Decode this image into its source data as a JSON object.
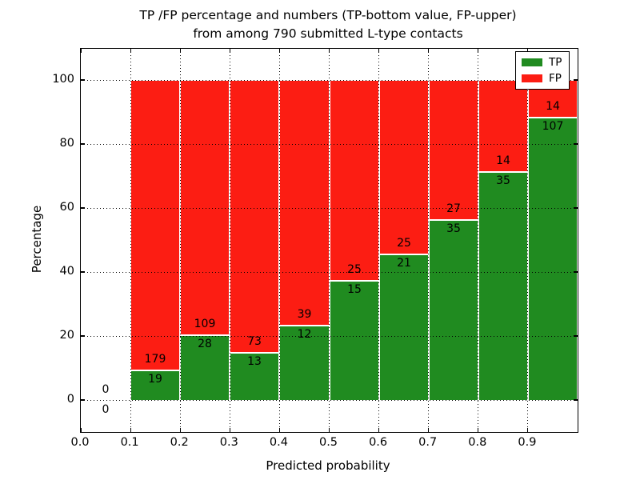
{
  "title": {
    "line1": "TP /FP percentage and numbers (TP-bottom value, FP-upper)",
    "line2": "from among 790 submitted L-type contacts"
  },
  "chart_data": {
    "type": "bar",
    "stacked": true,
    "normalized_to": "percent (each bin stacks to 100%)",
    "bins": [
      0.0,
      0.1,
      0.2,
      0.3,
      0.4,
      0.5,
      0.6,
      0.7,
      0.8,
      0.9
    ],
    "bin_width": 0.1,
    "series": [
      {
        "name": "TP",
        "color": "#208b20",
        "counts": [
          0,
          19,
          28,
          13,
          12,
          15,
          21,
          35,
          35,
          107
        ]
      },
      {
        "name": "FP",
        "color": "#fc1d13",
        "counts": [
          0,
          179,
          109,
          73,
          39,
          25,
          25,
          27,
          14,
          14
        ]
      }
    ],
    "total_contacts": 790,
    "xlabel": "Predicted probability",
    "ylabel": "Percentage",
    "x_tick_labels": [
      "0.0",
      "0.1",
      "0.2",
      "0.3",
      "0.4",
      "0.5",
      "0.6",
      "0.7",
      "0.8",
      "0.9"
    ],
    "y_tick_labels": [
      "0",
      "20",
      "40",
      "60",
      "80",
      "100"
    ],
    "y_ticks": [
      0,
      20,
      40,
      60,
      80,
      100
    ],
    "xlim": [
      0.0,
      1.0
    ],
    "ylim": [
      -10,
      110
    ],
    "grid": "dotted black, both axes",
    "legend_position": "upper right"
  },
  "legend": {
    "items": [
      {
        "label": "TP",
        "color": "#208b20"
      },
      {
        "label": "FP",
        "color": "#fc1d13"
      }
    ]
  }
}
